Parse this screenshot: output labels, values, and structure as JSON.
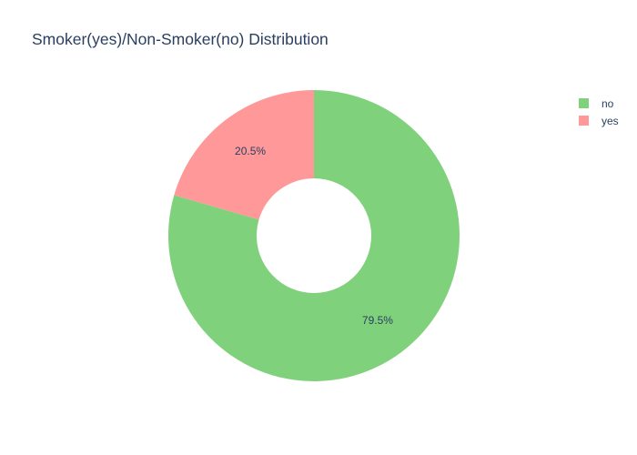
{
  "chart_data": {
    "type": "pie",
    "title": "Smoker(yes)/Non-Smoker(no) Distribution",
    "hole": true,
    "legend_position": "top-right",
    "slices": [
      {
        "label": "no",
        "value": 79.5,
        "text": "79.5%",
        "color": "#7fd17c"
      },
      {
        "label": "yes",
        "value": 20.5,
        "text": "20.5%",
        "color": "#ff9999"
      }
    ]
  }
}
